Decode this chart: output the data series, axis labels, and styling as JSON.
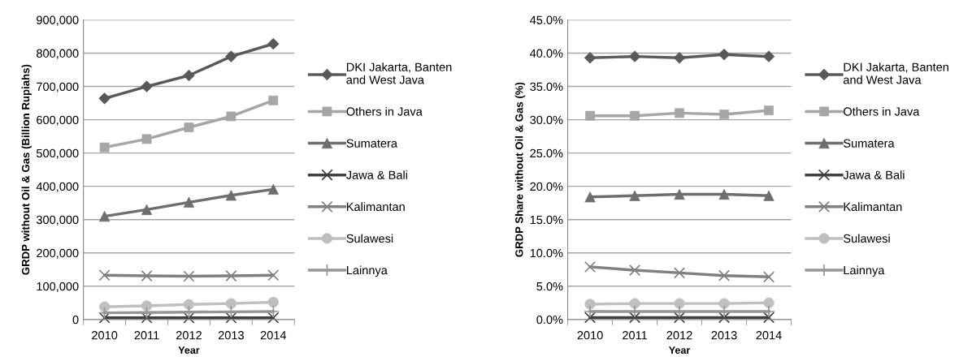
{
  "chart_data": [
    {
      "type": "line",
      "categories": [
        "2010",
        "2011",
        "2012",
        "2013",
        "2014"
      ],
      "xlabel": "Year",
      "ylabel": "GRDP without Oil & Gas (Billion Rupiahs)",
      "ylim": [
        0,
        900000
      ],
      "yticks": [
        {
          "value": 0,
          "label": "0"
        },
        {
          "value": 100000,
          "label": "100,000"
        },
        {
          "value": 200000,
          "label": "200,000"
        },
        {
          "value": 300000,
          "label": "300,000"
        },
        {
          "value": 400000,
          "label": "400,000"
        },
        {
          "value": 500000,
          "label": "500,000"
        },
        {
          "value": 600000,
          "label": "600,000"
        },
        {
          "value": 700000,
          "label": "700,000"
        },
        {
          "value": 800000,
          "label": "800,000"
        },
        {
          "value": 900000,
          "label": "900,000"
        }
      ],
      "grid": "y",
      "legend": "right",
      "line_style": "solid",
      "series": [
        {
          "name": "DKI Jakarta, Banten\nand West Java",
          "color": "#595959",
          "marker": "diamond",
          "values": [
            664000,
            700000,
            733000,
            790000,
            828000
          ]
        },
        {
          "name": "Others in Java",
          "color": "#a6a6a6",
          "marker": "square",
          "values": [
            517000,
            542000,
            577000,
            610000,
            658000
          ]
        },
        {
          "name": "Sumatera",
          "color": "#6e6e6e",
          "marker": "triangle",
          "values": [
            310000,
            330000,
            352000,
            373000,
            391000
          ]
        },
        {
          "name": "Jawa & Bali",
          "color": "#404040",
          "marker": "cross",
          "values": [
            5000,
            5000,
            5000,
            5000,
            5000
          ]
        },
        {
          "name": "Kalimantan",
          "color": "#808080",
          "marker": "cross",
          "values": [
            133000,
            131000,
            130000,
            131000,
            133000
          ]
        },
        {
          "name": "Sulawesi",
          "color": "#bfbfbf",
          "marker": "circle",
          "values": [
            38000,
            41000,
            45000,
            48000,
            52000
          ]
        },
        {
          "name": "Lainnya",
          "color": "#969696",
          "marker": "plus",
          "values": [
            20000,
            21000,
            22000,
            23000,
            24000
          ]
        }
      ]
    },
    {
      "type": "line",
      "categories": [
        "2010",
        "2011",
        "2012",
        "2013",
        "2014"
      ],
      "xlabel": "Year",
      "ylabel": "GRDP Share without Oil & Gas (%)",
      "ylim": [
        0,
        45
      ],
      "yticks": [
        {
          "value": 0,
          "label": "0.0%"
        },
        {
          "value": 5,
          "label": "5.0%"
        },
        {
          "value": 10,
          "label": "10.0%"
        },
        {
          "value": 15,
          "label": "15.0%"
        },
        {
          "value": 20,
          "label": "20.0%"
        },
        {
          "value": 25,
          "label": "25.0%"
        },
        {
          "value": 30,
          "label": "30.0%"
        },
        {
          "value": 35,
          "label": "35.0%"
        },
        {
          "value": 40,
          "label": "40.0%"
        },
        {
          "value": 45,
          "label": "45.0%"
        }
      ],
      "grid": "y",
      "legend": "right",
      "line_style": "solid",
      "series": [
        {
          "name": "DKI Jakarta, Banten\nand West Java",
          "color": "#595959",
          "marker": "diamond",
          "values": [
            39.3,
            39.5,
            39.3,
            39.8,
            39.5
          ]
        },
        {
          "name": "Others in Java",
          "color": "#a6a6a6",
          "marker": "square",
          "values": [
            30.6,
            30.6,
            31.0,
            30.8,
            31.4
          ]
        },
        {
          "name": "Sumatera",
          "color": "#6e6e6e",
          "marker": "triangle",
          "values": [
            18.4,
            18.6,
            18.8,
            18.8,
            18.6
          ]
        },
        {
          "name": "Jawa & Bali",
          "color": "#404040",
          "marker": "cross",
          "values": [
            0.3,
            0.3,
            0.3,
            0.3,
            0.3
          ]
        },
        {
          "name": "Kalimantan",
          "color": "#808080",
          "marker": "cross",
          "values": [
            7.9,
            7.4,
            7.0,
            6.6,
            6.4
          ]
        },
        {
          "name": "Sulawesi",
          "color": "#bfbfbf",
          "marker": "circle",
          "values": [
            2.3,
            2.4,
            2.4,
            2.4,
            2.5
          ]
        },
        {
          "name": "Lainnya",
          "color": "#969696",
          "marker": "plus",
          "values": [
            1.2,
            1.2,
            1.2,
            1.2,
            1.2
          ]
        }
      ]
    }
  ]
}
